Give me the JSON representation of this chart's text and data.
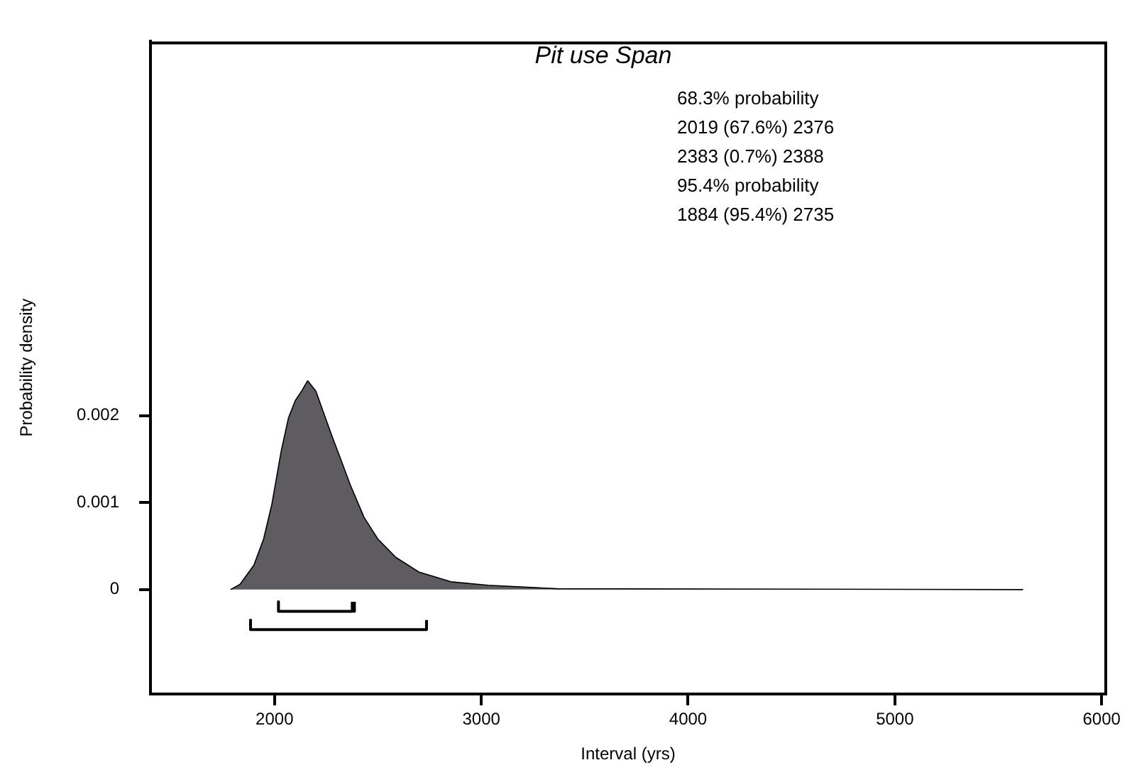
{
  "chart_data": {
    "type": "area",
    "title": "Pit use Span",
    "xlabel": "Interval (yrs)",
    "ylabel": "Probability density",
    "annotations": [
      "68.3% probability",
      "2019 (67.6%) 2376",
      "2383 (0.7%) 2388",
      "95.4% probability",
      "1884 (95.4%) 2735"
    ],
    "xlim": [
      1400,
      6020
    ],
    "xticks": [
      2000,
      3000,
      4000,
      5000,
      6000
    ],
    "ylim": [
      -0.0012,
      0.0063
    ],
    "yticks": [
      0,
      0.001,
      0.002
    ],
    "grid": false,
    "legend": false,
    "marker": "none",
    "series": [
      {
        "color": "#5e5c60",
        "x": [
          1787,
          1833,
          1900,
          1947,
          1987,
          2033,
          2067,
          2100,
          2133,
          2160,
          2200,
          2233,
          2280,
          2320,
          2367,
          2433,
          2500,
          2587,
          2700,
          2853,
          3033,
          3367,
          5620
        ],
        "values": [
          0,
          6e-05,
          0.00028,
          0.00058,
          0.00098,
          0.0016,
          0.00197,
          0.00217,
          0.00229,
          0.0024,
          0.00228,
          0.00206,
          0.00175,
          0.0015,
          0.0012,
          0.00083,
          0.00058,
          0.00037,
          0.0002,
          9e-05,
          5e-05,
          1e-05,
          0
        ]
      },
      {
        "type": "line",
        "color": "#000000",
        "x": [
          2019,
          2019,
          2376,
          2376
        ],
        "values": [
          -0.00014,
          -0.00025,
          -0.00025,
          -0.00014
        ]
      },
      {
        "type": "line",
        "color": "#000000",
        "x": [
          2383,
          2383,
          2388,
          2388
        ],
        "values": [
          -0.00014,
          -0.00025,
          -0.00025,
          -0.00014
        ]
      },
      {
        "type": "line",
        "color": "#000000",
        "x": [
          1884,
          1884,
          2735,
          2735
        ],
        "values": [
          -0.00035,
          -0.00046,
          -0.00046,
          -0.00035
        ]
      }
    ]
  }
}
